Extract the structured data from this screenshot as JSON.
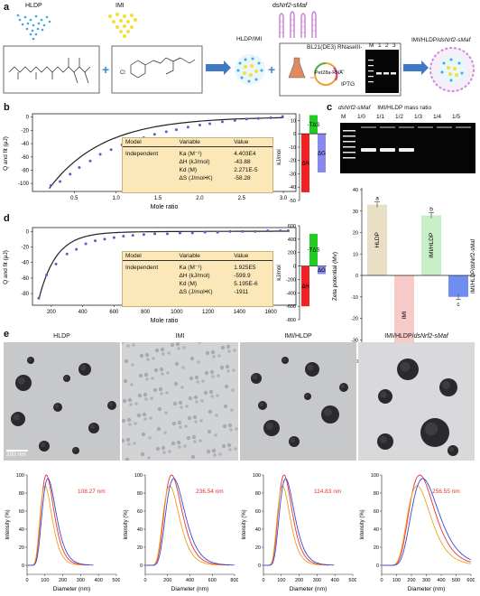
{
  "panels": {
    "a": "a",
    "b": "b",
    "c": "c",
    "d": "d",
    "e": "e"
  },
  "schematic": {
    "hldp": "HLDP",
    "imi": "IMI",
    "dsrna_prefix": "ds",
    "dsrna_gene": "Nrf2-sMaf",
    "hldp_imi": "HLDP/IMI",
    "strain": "BL21(DE3) RNaseIII-",
    "plasmid": "Pet28a-RNA",
    "inducer": "IPTG",
    "gel_lanes": [
      "M",
      "1",
      "2",
      "3"
    ],
    "final_prefix": "IMI/HLDP/",
    "final_gene": "dsNrf2-sMaf"
  },
  "itc_b": {
    "ylabel": "Q and fit (μJ)",
    "xlabel": "Mole ratio",
    "yticks": [
      "0",
      "-20",
      "-40",
      "-60",
      "-80",
      "-100"
    ],
    "xticks": [
      "0.5",
      "1.0",
      "1.5",
      "2.0",
      "2.5",
      "3.0"
    ],
    "table": {
      "headers": [
        "Model",
        "Variable",
        "Value"
      ],
      "model": "Independent",
      "rows": [
        {
          "var": "Ka (M⁻¹)",
          "val": "4.403E4"
        },
        {
          "var": "ΔH (kJ/mol)",
          "val": "-43.88"
        },
        {
          "var": "Kd (M)",
          "val": "2.271E-5"
        },
        {
          "var": "ΔS (J/mol•K)",
          "val": "-58.28"
        }
      ]
    },
    "bar_ylabel": "kJ/mol",
    "bar_yticks": [
      "10",
      "0",
      "-10",
      "-20",
      "-30",
      "-40",
      "-50"
    ],
    "bar_labels": [
      "ΔH",
      "-TΔS",
      "ΔG"
    ]
  },
  "itc_d": {
    "ylabel": "Q and fit (μJ)",
    "xlabel": "Mole ratio",
    "yticks": [
      "0",
      "-20",
      "-40",
      "-60",
      "-80"
    ],
    "xticks": [
      "200",
      "400",
      "600",
      "800",
      "1000",
      "1200",
      "1400",
      "1600"
    ],
    "table": {
      "headers": [
        "Model",
        "Variable",
        "Value"
      ],
      "model": "Independent",
      "rows": [
        {
          "var": "Ka (M⁻¹)",
          "val": "1.925E5"
        },
        {
          "var": "ΔH (kJ/mol)",
          "val": "-599.9"
        },
        {
          "var": "Kd (M)",
          "val": "5.195E-6"
        },
        {
          "var": "ΔS (J/mol•K)",
          "val": "-1911"
        }
      ]
    },
    "bar_ylabel": "kJ/mol",
    "bar_yticks": [
      "600",
      "400",
      "200",
      "0",
      "-200",
      "-400",
      "-600",
      "-800"
    ],
    "bar_labels": [
      "ΔH",
      "-TΔS",
      "ΔG"
    ]
  },
  "panel_c": {
    "title_gene": "dsNrf2-sMaf",
    "title_rest": "IMI/HLDP mass ratio",
    "lanes": [
      "M",
      "1/0",
      "1/1",
      "1/2",
      "1/3",
      "1/4",
      "1/5"
    ],
    "zeta_ylabel": "Zeta potential (Mv)",
    "zeta_yticks": [
      "40",
      "30",
      "20",
      "10",
      "0",
      "-10",
      "-20",
      "-30",
      "-40"
    ],
    "bars": [
      {
        "label": "HLDP",
        "letter": "a",
        "value": 33,
        "color": "#e9dfc5"
      },
      {
        "label": "IMI",
        "letter": "d",
        "value": -37,
        "color": "#f7c9c9"
      },
      {
        "label": "IMI/HLDP",
        "letter": "b",
        "value": 28,
        "color": "#c9efc9"
      },
      {
        "label": "IMI/HLDP/dsNrf2-sMaf",
        "letter": "c",
        "value": -10,
        "color": "#6f8ff0"
      }
    ]
  },
  "panel_e": {
    "titles": [
      "HLDP",
      "IMI",
      "IMI/HLDP",
      "IMI/HLDP/dsNrf2-sMaf"
    ],
    "scale_bar": "200 nm",
    "size_labels": [
      "108.27 nm",
      "236.54 nm",
      "114.83 nm",
      "256.55 nm"
    ],
    "ylabel": "Intensity (%)",
    "xlabel": "Diameter (nm)",
    "yticks": [
      "0",
      "20",
      "40",
      "60",
      "80",
      "100"
    ],
    "xticks_sets": [
      [
        "0",
        "100",
        "200",
        "300",
        "400",
        "500"
      ],
      [
        "0",
        "200",
        "400",
        "600",
        "800"
      ],
      [
        "0",
        "100",
        "200",
        "300",
        "400",
        "500"
      ],
      [
        "0",
        "100",
        "200",
        "300",
        "400",
        "500",
        "600"
      ]
    ]
  },
  "colors": {
    "accent_red": "#e2302b",
    "dh": "#ee2222",
    "tds": "#22cc22",
    "dg": "#8888ee",
    "size_label": "#e2302b"
  }
}
